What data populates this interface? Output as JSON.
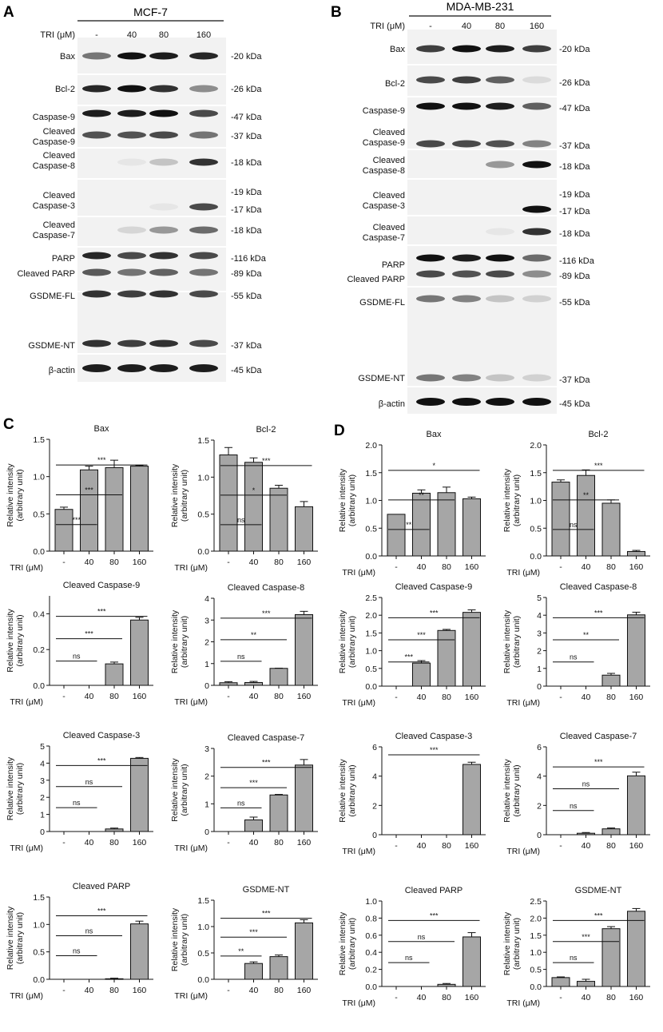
{
  "panel_letters": [
    "A",
    "B",
    "C",
    "D"
  ],
  "blots": [
    {
      "letter": "A",
      "cell_line": "MCF-7",
      "tri_label": "TRI (μM)",
      "lanes": [
        "-",
        "40",
        "80",
        "160"
      ],
      "rows": [
        {
          "labels": [
            "Bax"
          ],
          "sizes": [
            "-20 kDa"
          ]
        },
        {
          "labels": [
            "Bcl-2"
          ],
          "sizes": [
            "-26 kDa"
          ]
        },
        {
          "labels": [
            "Caspase-9",
            "Cleaved Caspase-9"
          ],
          "sizes": [
            "-47 kDa",
            "-37 kDa"
          ]
        },
        {
          "labels": [
            "Cleaved Caspase-8"
          ],
          "sizes": [
            "-18 kDa"
          ]
        },
        {
          "labels": [
            "Cleaved Caspase-3"
          ],
          "sizes": [
            "-19 kDa",
            "-17 kDa"
          ]
        },
        {
          "labels": [
            "Cleaved Caspase-7"
          ],
          "sizes": [
            "-18 kDa"
          ]
        },
        {
          "labels": [
            "PARP",
            "Cleaved PARP"
          ],
          "sizes": [
            "-116 kDa",
            "-89 kDa"
          ]
        },
        {
          "labels": [
            "GSDME-FL",
            "GSDME-NT"
          ],
          "sizes": [
            "-55 kDa",
            "-37 kDa"
          ]
        },
        {
          "labels": [
            "β-actin"
          ],
          "sizes": [
            "-45 kDa"
          ]
        }
      ]
    },
    {
      "letter": "B",
      "cell_line": "MDA-MB-231",
      "tri_label": "TRI (μM)",
      "lanes": [
        "-",
        "40",
        "80",
        "160"
      ],
      "rows": [
        {
          "labels": [
            "Bax"
          ],
          "sizes": [
            "-20 kDa"
          ]
        },
        {
          "labels": [
            "Bcl-2"
          ],
          "sizes": [
            "-26 kDa"
          ]
        },
        {
          "labels": [
            "Caspase-9",
            "Cleaved Caspase-9"
          ],
          "sizes": [
            "-47 kDa",
            "-37 kDa"
          ]
        },
        {
          "labels": [
            "Cleaved Caspase-8"
          ],
          "sizes": [
            "-18 kDa"
          ]
        },
        {
          "labels": [
            "Cleaved Caspase-3"
          ],
          "sizes": [
            "-19 kDa",
            "-17 kDa"
          ]
        },
        {
          "labels": [
            "Cleaved Caspase-7"
          ],
          "sizes": [
            "-18 kDa"
          ]
        },
        {
          "labels": [
            "PARP",
            "Cleaved PARP"
          ],
          "sizes": [
            "-116 kDa",
            "-89 kDa"
          ]
        },
        {
          "labels": [
            "GSDME-FL",
            "GSDME-NT"
          ],
          "sizes": [
            "-55 kDa",
            "-37 kDa"
          ]
        },
        {
          "labels": [
            "β-actin"
          ],
          "sizes": [
            "-45 kDa"
          ]
        }
      ]
    }
  ],
  "chart_data": [
    {
      "panel": "C",
      "type": "bar",
      "title": "Bax",
      "xlabel": "TRI (μM)",
      "ylabel": "Relative intensity (arbitrary unit)",
      "categories": [
        "-",
        "40",
        "80",
        "160"
      ],
      "values": [
        0.56,
        1.09,
        1.12,
        1.14
      ],
      "errors": [
        0.03,
        0.05,
        0.1,
        0.01
      ],
      "ylim": [
        0,
        1.5
      ],
      "yticks": [
        "0.0",
        "0.5",
        "1.0",
        "1.5"
      ],
      "significance": [
        {
          "from": 0,
          "to": 1,
          "label": "***"
        },
        {
          "from": 0,
          "to": 2,
          "label": "***"
        },
        {
          "from": 0,
          "to": 3,
          "label": "***"
        }
      ]
    },
    {
      "panel": "C",
      "type": "bar",
      "title": "Bcl-2",
      "xlabel": "TRI (μM)",
      "ylabel": "Relative intensity (arbitrary unit)",
      "categories": [
        "-",
        "40",
        "80",
        "160"
      ],
      "values": [
        1.3,
        1.2,
        0.85,
        0.6
      ],
      "errors": [
        0.1,
        0.06,
        0.04,
        0.07
      ],
      "ylim": [
        0,
        1.5
      ],
      "yticks": [
        "0.0",
        "0.5",
        "1.0",
        "1.5"
      ],
      "significance": [
        {
          "from": 0,
          "to": 1,
          "label": "ns"
        },
        {
          "from": 0,
          "to": 2,
          "label": "*"
        },
        {
          "from": 0,
          "to": 3,
          "label": "***"
        }
      ]
    },
    {
      "panel": "C",
      "type": "bar",
      "title": "Cleaved Caspase-9",
      "xlabel": "TRI (μM)",
      "ylabel": "Relative intensity (arbitrary unit)",
      "categories": [
        "-",
        "40",
        "80",
        "160"
      ],
      "values": [
        0,
        0,
        0.12,
        0.365
      ],
      "errors": [
        0,
        0,
        0.01,
        0.015
      ],
      "ylim": [
        0,
        0.5
      ],
      "yticks": [
        "0.0",
        "0.2",
        "0.4"
      ],
      "significance": [
        {
          "from": 0,
          "to": 1,
          "label": "ns"
        },
        {
          "from": 0,
          "to": 2,
          "label": "***"
        },
        {
          "from": 0,
          "to": 3,
          "label": "***"
        }
      ]
    },
    {
      "panel": "C",
      "type": "bar",
      "title": "Cleaved Caspase-8",
      "xlabel": "TRI (μM)",
      "ylabel": "Relative intensity (arbitrary unit)",
      "categories": [
        "-",
        "40",
        "80",
        "160"
      ],
      "values": [
        0.12,
        0.13,
        0.78,
        3.25
      ],
      "errors": [
        0.05,
        0.05,
        0.01,
        0.15
      ],
      "ylim": [
        0,
        4
      ],
      "yticks": [
        "0",
        "1",
        "2",
        "3",
        "4"
      ],
      "significance": [
        {
          "from": 0,
          "to": 1,
          "label": "ns"
        },
        {
          "from": 0,
          "to": 2,
          "label": "**"
        },
        {
          "from": 0,
          "to": 3,
          "label": "***"
        }
      ]
    },
    {
      "panel": "C",
      "type": "bar",
      "title": "Cleaved Caspase-3",
      "xlabel": "TRI (μM)",
      "ylabel": "Relative intensity (arbitrary unit)",
      "categories": [
        "-",
        "40",
        "80",
        "160"
      ],
      "values": [
        0,
        0,
        0.15,
        4.28
      ],
      "errors": [
        0,
        0,
        0.05,
        0.05
      ],
      "ylim": [
        0,
        5
      ],
      "yticks": [
        "0",
        "1",
        "2",
        "3",
        "4",
        "5"
      ],
      "significance": [
        {
          "from": 0,
          "to": 1,
          "label": "ns"
        },
        {
          "from": 0,
          "to": 2,
          "label": "ns"
        },
        {
          "from": 0,
          "to": 3,
          "label": "***"
        }
      ]
    },
    {
      "panel": "C",
      "type": "bar",
      "title": "Cleaved Caspase-7",
      "xlabel": "TRI (μM)",
      "ylabel": "Relative intensity (arbitrary unit)",
      "categories": [
        "-",
        "40",
        "80",
        "160"
      ],
      "values": [
        0,
        0.42,
        1.32,
        2.4
      ],
      "errors": [
        0,
        0.1,
        0.02,
        0.2
      ],
      "ylim": [
        0,
        3
      ],
      "yticks": [
        "0",
        "1",
        "2",
        "3"
      ],
      "significance": [
        {
          "from": 0,
          "to": 1,
          "label": "ns"
        },
        {
          "from": 0,
          "to": 2,
          "label": "***"
        },
        {
          "from": 0,
          "to": 3,
          "label": "***"
        }
      ]
    },
    {
      "panel": "C",
      "type": "bar",
      "title": "Cleaved PARP",
      "xlabel": "TRI (μM)",
      "ylabel": "Relative intensity (arbitrary unit)",
      "categories": [
        "-",
        "40",
        "80",
        "160"
      ],
      "values": [
        0,
        0,
        0.01,
        1.01
      ],
      "errors": [
        0,
        0,
        0.01,
        0.05
      ],
      "ylim": [
        0,
        1.5
      ],
      "yticks": [
        "0.0",
        "0.5",
        "1.0",
        "1.5"
      ],
      "significance": [
        {
          "from": 0,
          "to": 1,
          "label": "ns"
        },
        {
          "from": 0,
          "to": 2,
          "label": "ns"
        },
        {
          "from": 0,
          "to": 3,
          "label": "***"
        }
      ]
    },
    {
      "panel": "C",
      "type": "bar",
      "title": "GSDME-NT",
      "xlabel": "TRI (μM)",
      "ylabel": "Relative intensity (arbitrary unit)",
      "categories": [
        "-",
        "40",
        "80",
        "160"
      ],
      "values": [
        0,
        0.3,
        0.43,
        1.07
      ],
      "errors": [
        0,
        0.03,
        0.03,
        0.06
      ],
      "ylim": [
        0,
        1.5
      ],
      "yticks": [
        "0.0",
        "0.5",
        "1.0",
        "1.5"
      ],
      "significance": [
        {
          "from": 0,
          "to": 1,
          "label": "**"
        },
        {
          "from": 0,
          "to": 2,
          "label": "***"
        },
        {
          "from": 0,
          "to": 3,
          "label": "***"
        }
      ]
    },
    {
      "panel": "D",
      "type": "bar",
      "title": "Bax",
      "xlabel": "TRI (μM)",
      "ylabel": "Relative intensity (arbitrary unit)",
      "categories": [
        "-",
        "40",
        "80",
        "160"
      ],
      "values": [
        0.75,
        1.13,
        1.14,
        1.03
      ],
      "errors": [
        0,
        0.06,
        0.1,
        0.03
      ],
      "ylim": [
        0,
        2.0
      ],
      "yticks": [
        "0.0",
        "0.5",
        "1.0",
        "1.5",
        "2.0"
      ],
      "significance": [
        {
          "from": 0,
          "to": 1,
          "label": "**"
        },
        {
          "from": 0,
          "to": 2,
          "label": "**"
        },
        {
          "from": 0,
          "to": 3,
          "label": "*"
        }
      ]
    },
    {
      "panel": "D",
      "type": "bar",
      "title": "Bcl-2",
      "xlabel": "TRI (μM)",
      "ylabel": "Relative intensity (arbitrary unit)",
      "categories": [
        "-",
        "40",
        "80",
        "160"
      ],
      "values": [
        1.33,
        1.45,
        0.95,
        0.08
      ],
      "errors": [
        0.04,
        0.1,
        0.06,
        0.02
      ],
      "ylim": [
        0,
        2.0
      ],
      "yticks": [
        "0.0",
        "0.5",
        "1.0",
        "1.5",
        "2.0"
      ],
      "significance": [
        {
          "from": 0,
          "to": 1,
          "label": "ns"
        },
        {
          "from": 0,
          "to": 2,
          "label": "**"
        },
        {
          "from": 0,
          "to": 3,
          "label": "***"
        }
      ]
    },
    {
      "panel": "D",
      "type": "bar",
      "title": "Cleaved Caspase-9",
      "xlabel": "TRI (μM)",
      "ylabel": "Relative intensity (arbitrary unit)",
      "categories": [
        "-",
        "40",
        "80",
        "160"
      ],
      "values": [
        0,
        0.65,
        1.57,
        2.08
      ],
      "errors": [
        0,
        0.07,
        0.03,
        0.07
      ],
      "ylim": [
        0,
        2.5
      ],
      "yticks": [
        "0.0",
        "0.5",
        "1.0",
        "1.5",
        "2.0",
        "2.5"
      ],
      "significance": [
        {
          "from": 0,
          "to": 1,
          "label": "***"
        },
        {
          "from": 0,
          "to": 2,
          "label": "***"
        },
        {
          "from": 0,
          "to": 3,
          "label": "***"
        }
      ]
    },
    {
      "panel": "D",
      "type": "bar",
      "title": "Cleaved Caspase-8",
      "xlabel": "TRI (μM)",
      "ylabel": "Relative intensity (arbitrary unit)",
      "categories": [
        "-",
        "40",
        "80",
        "160"
      ],
      "values": [
        0,
        0,
        0.62,
        4.02
      ],
      "errors": [
        0,
        0,
        0.1,
        0.15
      ],
      "ylim": [
        0,
        5
      ],
      "yticks": [
        "0",
        "1",
        "2",
        "3",
        "4",
        "5"
      ],
      "significance": [
        {
          "from": 0,
          "to": 1,
          "label": "ns"
        },
        {
          "from": 0,
          "to": 2,
          "label": "**"
        },
        {
          "from": 0,
          "to": 3,
          "label": "***"
        }
      ]
    },
    {
      "panel": "D",
      "type": "bar",
      "title": "Cleaved Caspase-3",
      "xlabel": "TRI (μM)",
      "ylabel": "Relative intensity (arbitrary unit)",
      "categories": [
        "-",
        "40",
        "80",
        "160"
      ],
      "values": [
        0,
        0,
        0,
        4.8
      ],
      "errors": [
        0,
        0,
        0,
        0.15
      ],
      "ylim": [
        0,
        6
      ],
      "yticks": [
        "0",
        "2",
        "4",
        "6"
      ],
      "significance": [
        {
          "from": 0,
          "to": 3,
          "label": "***"
        }
      ]
    },
    {
      "panel": "D",
      "type": "bar",
      "title": "Cleaved Caspase-7",
      "xlabel": "TRI (μM)",
      "ylabel": "Relative intensity (arbitrary unit)",
      "categories": [
        "-",
        "40",
        "80",
        "160"
      ],
      "values": [
        0,
        0.1,
        0.4,
        4.02
      ],
      "errors": [
        0,
        0.05,
        0.06,
        0.25
      ],
      "ylim": [
        0,
        6
      ],
      "yticks": [
        "0",
        "2",
        "4",
        "6"
      ],
      "significance": [
        {
          "from": 0,
          "to": 1,
          "label": "ns"
        },
        {
          "from": 0,
          "to": 2,
          "label": "ns"
        },
        {
          "from": 0,
          "to": 3,
          "label": "***"
        }
      ]
    },
    {
      "panel": "D",
      "type": "bar",
      "title": "Cleaved PARP",
      "xlabel": "TRI (μM)",
      "ylabel": "Relative intensity (arbitrary unit)",
      "categories": [
        "-",
        "40",
        "80",
        "160"
      ],
      "values": [
        0,
        0,
        0.025,
        0.58
      ],
      "errors": [
        0,
        0,
        0.01,
        0.05
      ],
      "ylim": [
        0,
        1.0
      ],
      "yticks": [
        "0.0",
        "0.2",
        "0.4",
        "0.6",
        "0.8",
        "1.0"
      ],
      "significance": [
        {
          "from": 0,
          "to": 1,
          "label": "ns"
        },
        {
          "from": 0,
          "to": 2,
          "label": "ns"
        },
        {
          "from": 0,
          "to": 3,
          "label": "***"
        }
      ]
    },
    {
      "panel": "D",
      "type": "bar",
      "title": "GSDME-NT",
      "xlabel": "TRI (μM)",
      "ylabel": "Relative intensity (arbitrary unit)",
      "categories": [
        "-",
        "40",
        "80",
        "160"
      ],
      "values": [
        0.26,
        0.15,
        1.69,
        2.2
      ],
      "errors": [
        0.02,
        0.06,
        0.06,
        0.08
      ],
      "ylim": [
        0,
        2.5
      ],
      "yticks": [
        "0.0",
        "0.5",
        "1.0",
        "1.5",
        "2.0",
        "2.5"
      ],
      "significance": [
        {
          "from": 0,
          "to": 1,
          "label": "ns"
        },
        {
          "from": 0,
          "to": 2,
          "label": "***"
        },
        {
          "from": 0,
          "to": 3,
          "label": "***"
        }
      ]
    }
  ],
  "colors": {
    "bar_fill": "#a6a6a6",
    "bar_stroke": "#111111",
    "blot_bg": "#f2f2f2",
    "band": "#111111"
  },
  "band_intensity": {
    "A": [
      [
        0.55,
        1,
        0.95,
        0.9
      ],
      [
        0.9,
        1,
        0.85,
        0.45
      ],
      [
        0.95,
        0.95,
        1,
        0.75
      ],
      [
        0,
        0.05,
        0.2,
        0.85
      ],
      [
        0,
        0,
        0.05,
        0.75
      ],
      [
        0,
        0.12,
        0.4,
        0.6
      ],
      [
        0.9,
        0.75,
        0.85,
        0.75
      ],
      [
        0.85,
        0.8,
        0.85,
        0.75
      ],
      [
        0.95,
        0.95,
        0.95,
        0.95
      ]
    ],
    "B": [
      [
        0.8,
        1,
        0.95,
        0.8
      ],
      [
        0.75,
        0.8,
        0.65,
        0.1
      ],
      [
        1,
        1,
        0.95,
        0.65
      ],
      [
        0,
        0,
        0.4,
        1
      ],
      [
        0,
        0,
        0,
        1
      ],
      [
        0,
        0,
        0.05,
        0.85
      ],
      [
        1,
        0.95,
        1,
        0.6
      ],
      [
        0.55,
        0.5,
        0.2,
        0.15
      ],
      [
        1,
        1,
        1,
        1
      ]
    ]
  }
}
